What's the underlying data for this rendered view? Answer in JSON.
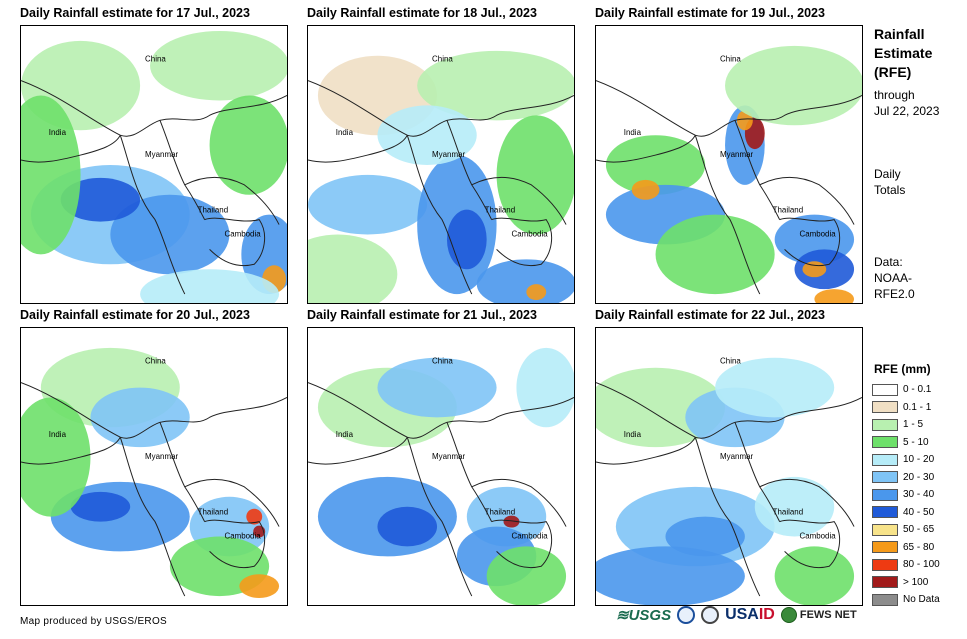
{
  "panels": [
    {
      "title": "Daily Rainfall estimate for 17 Jul., 2023"
    },
    {
      "title": "Daily Rainfall estimate for 18 Jul., 2023"
    },
    {
      "title": "Daily Rainfall estimate for 19 Jul., 2023"
    },
    {
      "title": "Daily Rainfall estimate for 20 Jul., 2023"
    },
    {
      "title": "Daily Rainfall estimate for 21 Jul., 2023"
    },
    {
      "title": "Daily Rainfall estimate for 22 Jul., 2023"
    }
  ],
  "places": {
    "china": "China",
    "india": "India",
    "myanmar": "Myanmar",
    "thailand": "Thailand",
    "cambodia": "Cambodia"
  },
  "sidebar": {
    "title_line1": "Rainfall",
    "title_line2": "Estimate",
    "title_line3": "(RFE)",
    "through": "through",
    "through_date": "Jul 22, 2023",
    "daily": "Daily",
    "totals": "Totals",
    "data_label": "Data:",
    "data_src1": "NOAA-",
    "data_src2": "RFE2.0"
  },
  "legend": {
    "title": "RFE (mm)",
    "items": [
      {
        "label": "0 - 0.1",
        "color": "#ffffff"
      },
      {
        "label": "0.1 - 1",
        "color": "#f0dfc4"
      },
      {
        "label": "1 - 5",
        "color": "#b8f0b0"
      },
      {
        "label": "5 - 10",
        "color": "#6ee06a"
      },
      {
        "label": "10 - 20",
        "color": "#b6ecf8"
      },
      {
        "label": "20 - 30",
        "color": "#7fc4f6"
      },
      {
        "label": "30 - 40",
        "color": "#4a97ec"
      },
      {
        "label": "40 - 50",
        "color": "#1f5ad8"
      },
      {
        "label": "50 - 65",
        "color": "#f7e38a"
      },
      {
        "label": "65 - 80",
        "color": "#f59a1a"
      },
      {
        "label": "80 - 100",
        "color": "#ee3a12"
      },
      {
        "label": "> 100",
        "color": "#a11a1a"
      },
      {
        "label": "No Data",
        "color": "#8c8c8c"
      }
    ]
  },
  "footer": {
    "credit": "Map produced by USGS/EROS",
    "logo_usgs": "≋USGS",
    "logo_usaid_a": "USA",
    "logo_usaid_b": "ID",
    "logo_fews": "FEWS NET"
  }
}
